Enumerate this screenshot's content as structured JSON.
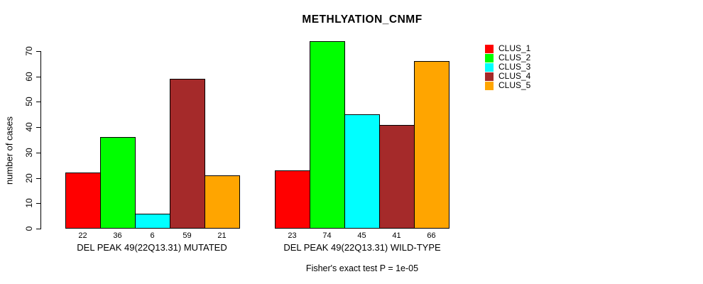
{
  "figure": {
    "background": "#FFFFFF",
    "text_color": "#000000"
  },
  "chart_data": {
    "type": "bar",
    "title": "METHLYATION_CNMF",
    "xlabel": "",
    "ylabel": "number of cases",
    "ylim": [
      0,
      70
    ],
    "yticks": [
      0,
      10,
      20,
      30,
      40,
      50,
      60,
      70
    ],
    "grid": false,
    "legend_position": "right-outside",
    "series_names": [
      "CLUS_1",
      "CLUS_2",
      "CLUS_3",
      "CLUS_4",
      "CLUS_5"
    ],
    "series_colors": [
      "#FF0000",
      "#00FF00",
      "#00FFFF",
      "#A52A2A",
      "#FFA500"
    ],
    "categories": [
      "DEL PEAK 49(22Q13.31) MUTATED",
      "DEL PEAK 49(22Q13.31) WILD-TYPE"
    ],
    "groups": [
      {
        "label": "DEL PEAK 49(22Q13.31) MUTATED",
        "values": [
          22,
          36,
          6,
          59,
          21
        ]
      },
      {
        "label": "DEL PEAK 49(22Q13.31) WILD-TYPE",
        "values": [
          23,
          74,
          45,
          41,
          66
        ]
      }
    ],
    "bar_value_labels_shown": true,
    "annotation": "Fisher's exact test P = 1e-05"
  }
}
